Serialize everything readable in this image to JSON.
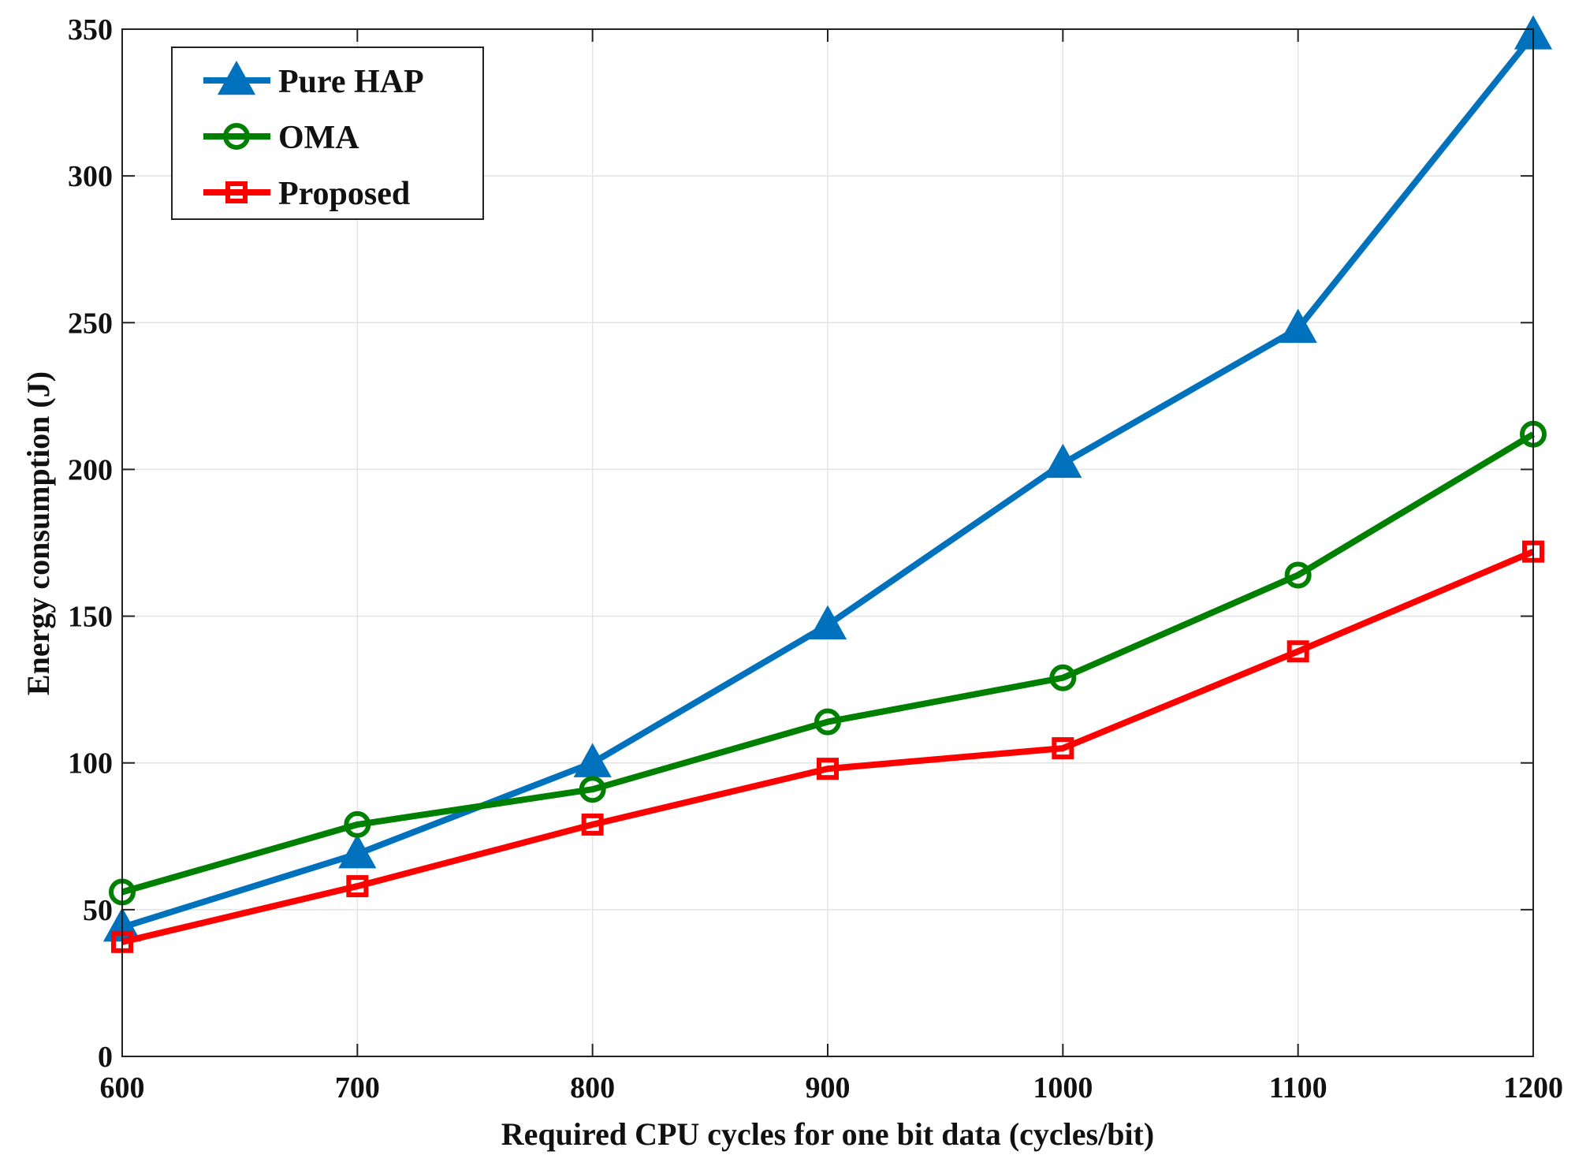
{
  "chart_data": {
    "type": "line",
    "title": "",
    "xlabel": "Required CPU cycles for one bit data (cycles/bit)",
    "ylabel": "Energy consumption (J)",
    "x": [
      600,
      700,
      800,
      900,
      1000,
      1100,
      1200
    ],
    "xlim": [
      600,
      1200
    ],
    "ylim": [
      0,
      350
    ],
    "xticks": [
      600,
      700,
      800,
      900,
      1000,
      1100,
      1200
    ],
    "yticks": [
      0,
      50,
      100,
      150,
      200,
      250,
      300,
      350
    ],
    "grid": true,
    "legend_position": "top-left",
    "series": [
      {
        "name": "Pure HAP",
        "color": "#0072BD",
        "marker": "triangle",
        "values": [
          44,
          69,
          100,
          147,
          202,
          248,
          348
        ]
      },
      {
        "name": "OMA",
        "color": "#008000",
        "marker": "circle",
        "values": [
          56,
          79,
          91,
          114,
          129,
          164,
          212
        ]
      },
      {
        "name": "Proposed",
        "color": "#FF0000",
        "marker": "square",
        "values": [
          39,
          58,
          79,
          98,
          105,
          138,
          172
        ]
      }
    ]
  }
}
